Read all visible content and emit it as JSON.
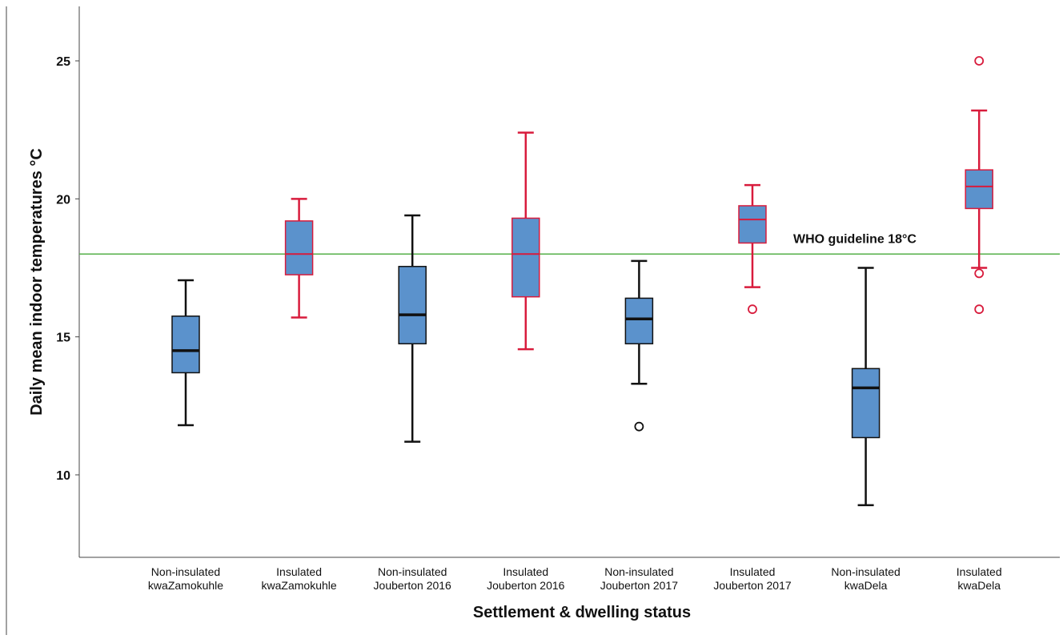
{
  "chart_data": {
    "type": "box",
    "xlabel": "Settlement & dwelling status",
    "ylabel": "Daily mean indoor temperatures °C",
    "ylim": [
      7,
      27
    ],
    "yticks": [
      10,
      15,
      20,
      25
    ],
    "grid": false,
    "colors": {
      "box_fill": "#5B92CC",
      "insulated": "#D81B3C",
      "non_insulated": "#111111",
      "reference_line": "#55B04A"
    },
    "reference_line": {
      "value": 18,
      "label": "WHO guideline 18°C"
    },
    "categories": [
      {
        "line1": "Non-insulated",
        "line2": "kwaZamokuhle",
        "insulated": false,
        "whisker_low": 11.8,
        "q1": 13.7,
        "median": 14.5,
        "q3": 15.75,
        "whisker_high": 17.05,
        "outliers": []
      },
      {
        "line1": "Insulated",
        "line2": "kwaZamokuhle",
        "insulated": true,
        "whisker_low": 15.7,
        "q1": 17.25,
        "median": 18.0,
        "q3": 19.2,
        "whisker_high": 20.0,
        "outliers": []
      },
      {
        "line1": "Non-insulated",
        "line2": "Jouberton 2016",
        "insulated": false,
        "whisker_low": 11.2,
        "q1": 14.75,
        "median": 15.8,
        "q3": 17.55,
        "whisker_high": 19.4,
        "outliers": []
      },
      {
        "line1": "Insulated",
        "line2": "Jouberton 2016",
        "insulated": true,
        "whisker_low": 14.55,
        "q1": 16.45,
        "median": 18.0,
        "q3": 19.3,
        "whisker_high": 22.4,
        "outliers": []
      },
      {
        "line1": "Non-insulated",
        "line2": "Jouberton 2017",
        "insulated": false,
        "whisker_low": 13.3,
        "q1": 14.75,
        "median": 15.65,
        "q3": 16.4,
        "whisker_high": 17.75,
        "outliers": [
          11.75
        ]
      },
      {
        "line1": "Insulated",
        "line2": "Jouberton 2017",
        "insulated": true,
        "whisker_low": 16.8,
        "q1": 18.4,
        "median": 19.25,
        "q3": 19.75,
        "whisker_high": 20.5,
        "outliers": [
          16.0
        ]
      },
      {
        "line1": "Non-insulated",
        "line2": "kwaDela",
        "insulated": false,
        "whisker_low": 8.9,
        "q1": 11.35,
        "median": 13.15,
        "q3": 13.85,
        "whisker_high": 17.5,
        "outliers": []
      },
      {
        "line1": "Insulated",
        "line2": "kwaDela",
        "insulated": true,
        "whisker_low": 17.5,
        "q1": 19.65,
        "median": 20.45,
        "q3": 21.05,
        "whisker_high": 23.2,
        "outliers": [
          17.3,
          16.0,
          25.0
        ]
      }
    ]
  }
}
